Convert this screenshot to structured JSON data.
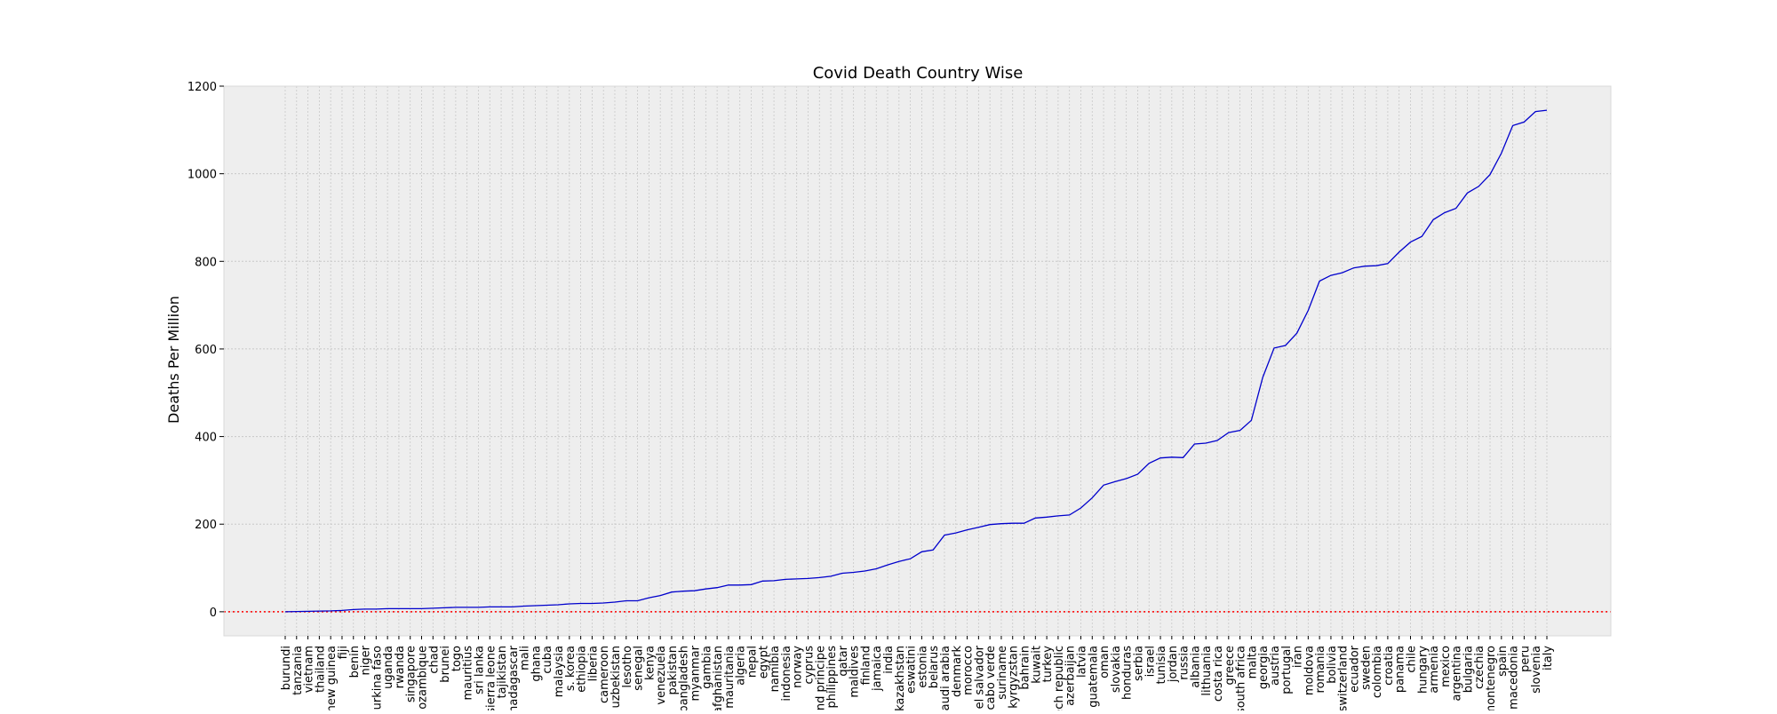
{
  "chart_data": {
    "type": "line",
    "title": "Covid Death Country Wise",
    "xlabel": "",
    "ylabel": "Deaths Per Million",
    "ylim": [
      -55,
      1200
    ],
    "yticks": [
      0,
      200,
      400,
      600,
      800,
      1000,
      1200
    ],
    "grid": true,
    "reference_line": {
      "y": 0,
      "style": "dotted",
      "color": "#ff0000"
    },
    "colors": {
      "line": "#0000cc",
      "plot_background": "#eeeeee",
      "grid": "#c8c8c8"
    },
    "categories": [
      "burundi",
      "tanzania",
      "vietnam",
      "thailand",
      "new guinea",
      "fiji",
      "benin",
      "niger",
      "burkina faso",
      "uganda",
      "rwanda",
      "singapore",
      "mozambique",
      "chad",
      "brunei",
      "togo",
      "mauritius",
      "sri lanka",
      "sierra leone",
      "tajikistan",
      "madagascar",
      "mali",
      "ghana",
      "cuba",
      "malaysia",
      "s. korea",
      "ethiopia",
      "liberia",
      "cameroon",
      "uzbekistan",
      "lesotho",
      "senegal",
      "kenya",
      "venezuela",
      "pakistan",
      "bangladesh",
      "myanmar",
      "gambia",
      "afghanistan",
      "mauritania",
      "algeria",
      "nepal",
      "egypt",
      "namibia",
      "indonesia",
      "norway",
      "cyprus",
      "and principe",
      "philippines",
      "qatar",
      "maldives",
      "finland",
      "jamaica",
      "india",
      "kazakhstan",
      "eswatini",
      "estonia",
      "belarus",
      "saudi arabia",
      "denmark",
      "morocco",
      "el salvador",
      "cabo verde",
      "suriname",
      "kyrgyzstan",
      "bahrain",
      "kuwait",
      "turkey",
      "czech republic",
      "azerbaijan",
      "latvia",
      "guatemala",
      "oman",
      "slovakia",
      "honduras",
      "serbia",
      "israel",
      "tunisia",
      "jordan",
      "russia",
      "albania",
      "lithuania",
      "costa rica",
      "greece",
      "south africa",
      "malta",
      "georgia",
      "austria",
      "portugal",
      "iran",
      "moldova",
      "romania",
      "bolivia",
      "switzerland",
      "ecuador",
      "sweden",
      "colombia",
      "croatia",
      "panama",
      "chile",
      "hungary",
      "armenia",
      "mexico",
      "argentina",
      "bulgaria",
      "czechia",
      "montenegro",
      "spain",
      "macedonia",
      "peru",
      "slovenia",
      "italy"
    ],
    "series": [
      {
        "values": [
          0,
          0.5,
          1,
          1.5,
          2,
          3,
          5,
          6,
          6,
          7,
          7,
          7,
          7,
          8,
          9,
          10,
          10,
          10,
          11,
          11,
          11,
          13,
          14,
          15,
          16,
          18,
          19,
          19,
          20,
          22,
          25,
          25,
          32,
          37,
          45,
          47,
          48,
          52,
          55,
          61,
          61,
          62,
          70,
          71,
          74,
          75,
          76,
          78,
          81,
          88,
          90,
          93,
          98,
          107,
          115,
          121,
          137,
          141,
          175,
          180,
          187,
          193,
          199,
          201,
          202,
          202,
          214,
          216,
          219,
          221,
          237,
          260,
          289,
          297,
          304,
          314,
          339,
          351,
          353,
          352,
          383,
          385,
          391,
          409,
          414,
          437,
          535,
          602,
          608,
          636,
          688,
          755,
          768,
          774,
          785,
          789,
          790,
          795,
          821,
          844,
          857,
          895,
          911,
          921,
          956,
          971,
          998,
          1047,
          1110,
          1118,
          1142,
          1145
        ]
      }
    ]
  }
}
